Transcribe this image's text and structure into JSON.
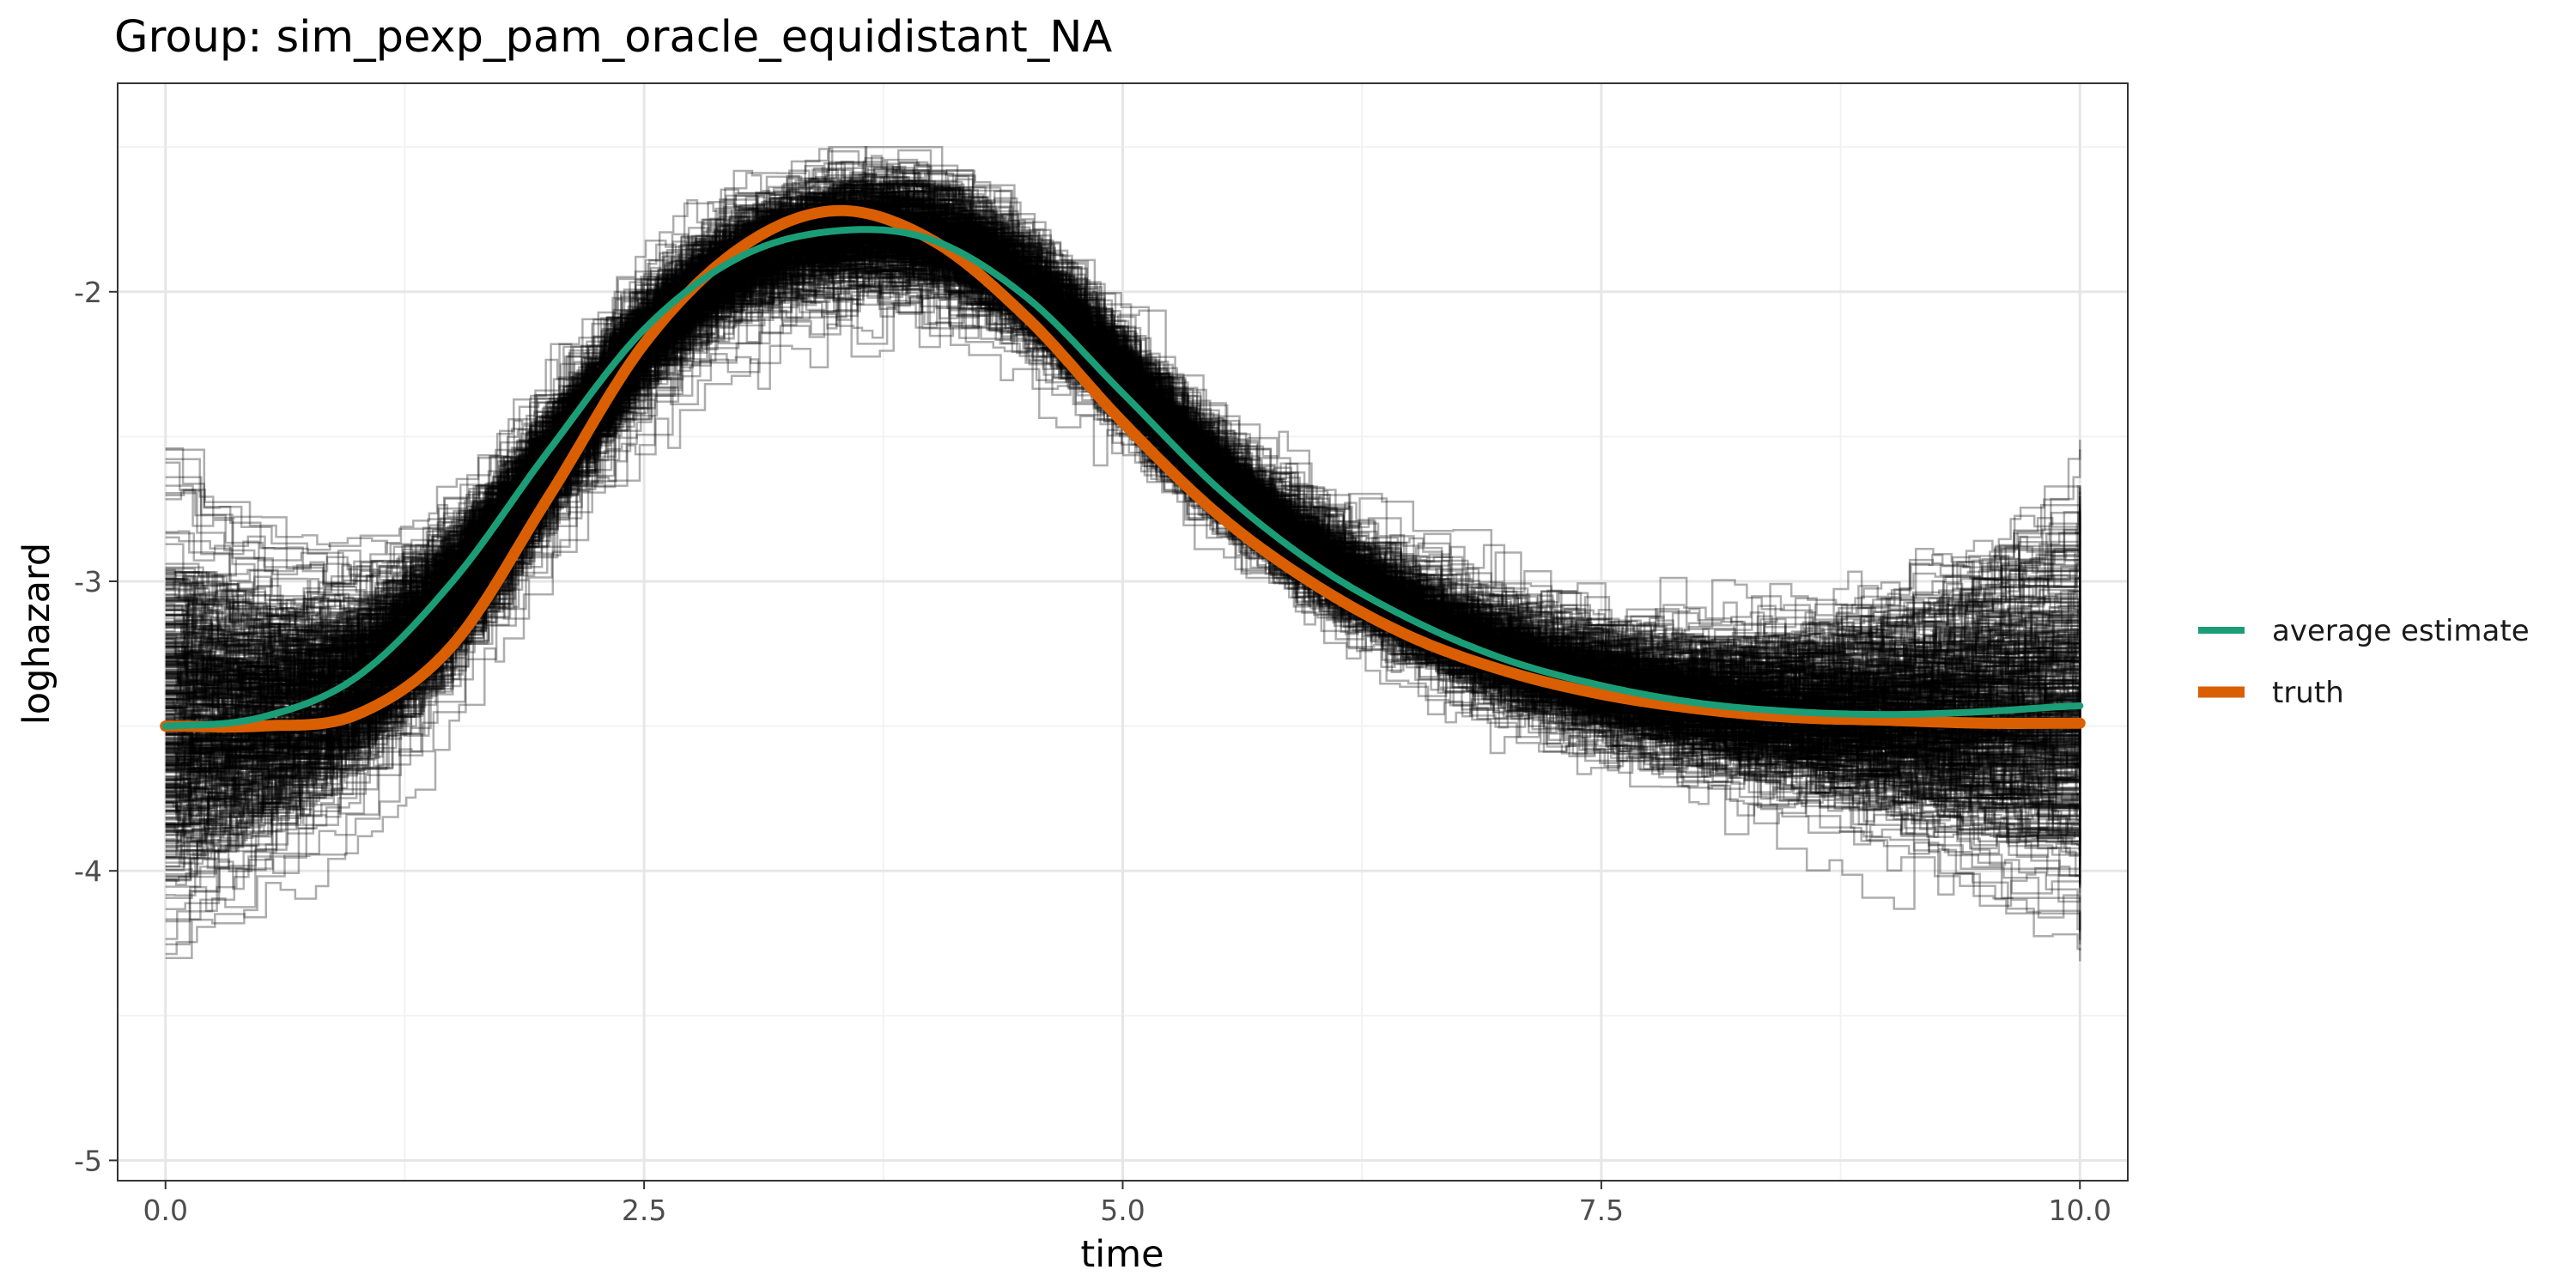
{
  "chart_data": {
    "type": "line",
    "title": "Group: sim_pexp_pam_oracle_equidistant_NA",
    "xlabel": "time",
    "ylabel": "loghazard",
    "xlim": [
      -0.25,
      10.25
    ],
    "ylim": [
      -5.07,
      -1.28
    ],
    "x_ticks": [
      0.0,
      2.5,
      5.0,
      7.5,
      10.0
    ],
    "x_tick_labels": [
      "0.0",
      "2.5",
      "5.0",
      "7.5",
      "10.0"
    ],
    "y_ticks": [
      -5,
      -4,
      -3,
      -2
    ],
    "y_tick_labels": [
      "-5",
      "-4",
      "-3",
      "-2"
    ],
    "grid": true,
    "legend_position": "right",
    "x": [
      0.0,
      0.5,
      1.0,
      1.5,
      2.0,
      2.5,
      3.0,
      3.5,
      4.0,
      4.5,
      5.0,
      5.5,
      6.0,
      6.5,
      7.0,
      7.5,
      8.0,
      8.5,
      9.0,
      9.5,
      10.0
    ],
    "series": [
      {
        "name": "average estimate",
        "color": "#1b9e77",
        "values": [
          -3.5,
          -3.47,
          -3.33,
          -3.0,
          -2.55,
          -2.13,
          -1.88,
          -1.79,
          -1.82,
          -2.02,
          -2.35,
          -2.68,
          -2.94,
          -3.13,
          -3.27,
          -3.36,
          -3.42,
          -3.45,
          -3.46,
          -3.45,
          -3.43
        ]
      },
      {
        "name": "truth",
        "color": "#d95f02",
        "values": [
          -3.5,
          -3.5,
          -3.46,
          -3.22,
          -2.71,
          -2.18,
          -1.85,
          -1.72,
          -1.82,
          -2.09,
          -2.45,
          -2.77,
          -3.01,
          -3.19,
          -3.31,
          -3.39,
          -3.44,
          -3.47,
          -3.48,
          -3.49,
          -3.49
        ]
      }
    ],
    "background_runs": {
      "color": "#000000",
      "count_shown": 480,
      "style": "semi-transparent step lines around the average estimate"
    }
  }
}
